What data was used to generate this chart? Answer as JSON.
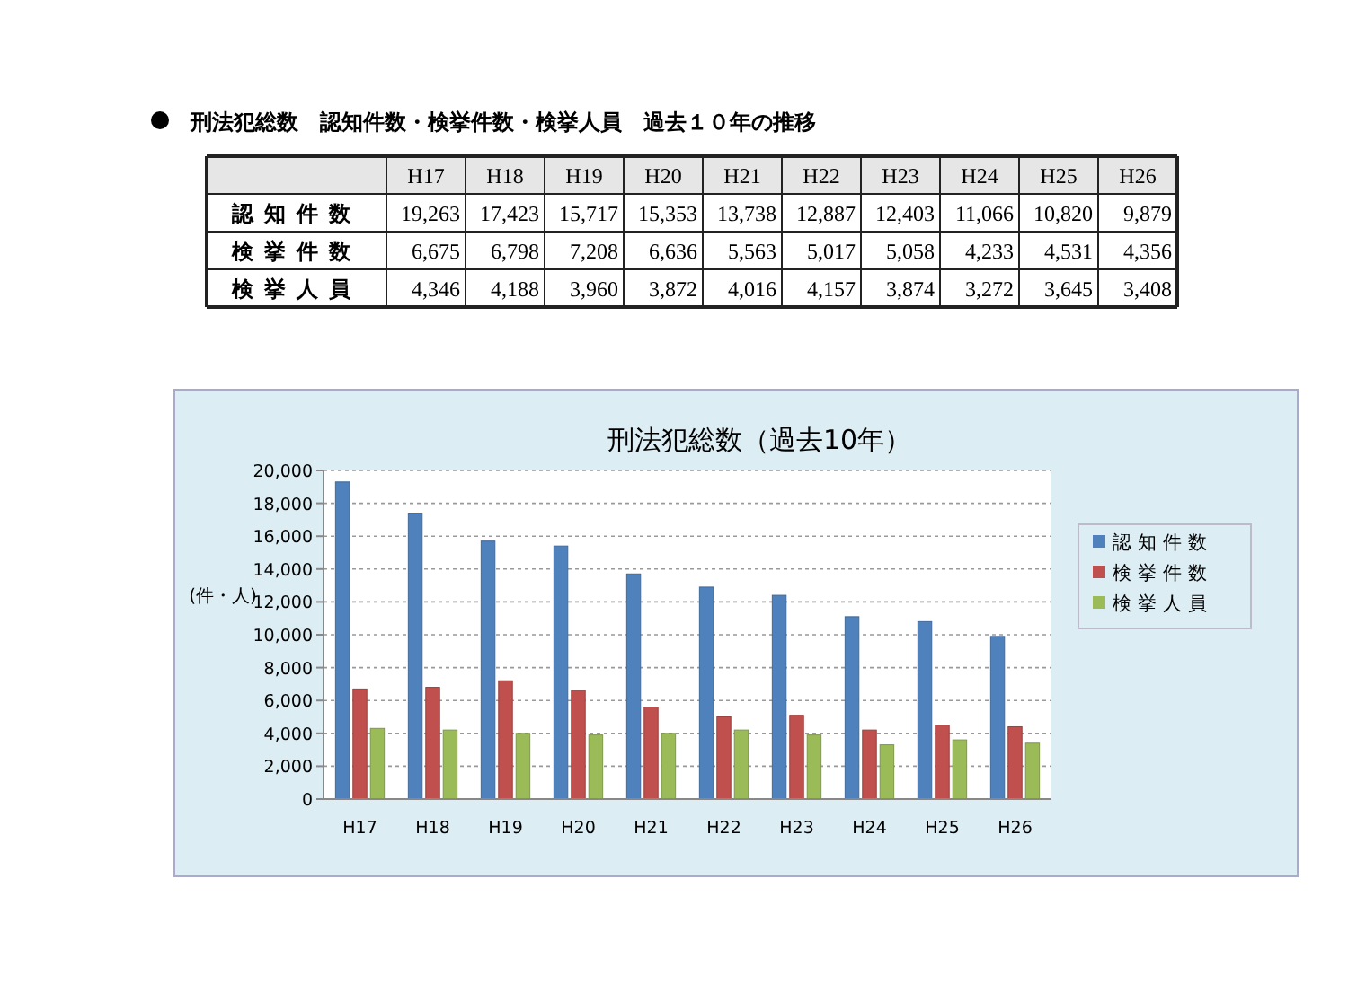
{
  "chart_data": [
    {
      "type": "other",
      "title": "刑法犯総数　認知件数・検挙件数・検挙人員　過去１０年の推移",
      "categories": [
        "H17",
        "H18",
        "H19",
        "H20",
        "H21",
        "H22",
        "H23",
        "H24",
        "H25",
        "H26"
      ],
      "series": [
        {
          "name": "認知件数",
          "values": [
            19263,
            17423,
            15717,
            15353,
            13738,
            12887,
            12403,
            11066,
            10820,
            9879
          ],
          "value_labels": [
            "19,263",
            "17,423",
            "15,717",
            "15,353",
            "13,738",
            "12,887",
            "12,403",
            "11,066",
            "10,820",
            "9,879"
          ]
        },
        {
          "name": "検挙件数",
          "values": [
            6675,
            6798,
            7208,
            6636,
            5563,
            5017,
            5058,
            4233,
            4531,
            4356
          ],
          "value_labels": [
            "6,675",
            "6,798",
            "7,208",
            "6,636",
            "5,563",
            "5,017",
            "5,058",
            "4,233",
            "4,531",
            "4,356"
          ]
        },
        {
          "name": "検挙人員",
          "values": [
            4346,
            4188,
            3960,
            3872,
            4016,
            4157,
            3874,
            3272,
            3645,
            3408
          ],
          "value_labels": [
            "4,346",
            "4,188",
            "3,960",
            "3,872",
            "4,016",
            "4,157",
            "3,874",
            "3,272",
            "3,645",
            "3,408"
          ]
        }
      ]
    },
    {
      "type": "bar",
      "title": "刑法犯総数（過去10年）",
      "ylabel": "(件・人)",
      "categories": [
        "H17",
        "H18",
        "H19",
        "H20",
        "H21",
        "H22",
        "H23",
        "H24",
        "H25",
        "H26"
      ],
      "series": [
        {
          "name": "認知件数",
          "color": "#4f81bd",
          "values": [
            19300,
            17400,
            15700,
            15400,
            13700,
            12900,
            12400,
            11100,
            10800,
            9900
          ]
        },
        {
          "name": "検挙件数",
          "color": "#c0504d",
          "values": [
            6700,
            6800,
            7200,
            6600,
            5600,
            5000,
            5100,
            4200,
            4500,
            4400
          ]
        },
        {
          "name": "検挙人員",
          "color": "#9bbb59",
          "values": [
            4300,
            4200,
            4000,
            3900,
            4000,
            4200,
            3900,
            3300,
            3600,
            3400
          ]
        }
      ],
      "ylim": [
        0,
        20000
      ],
      "yticks": [
        {
          "value": 0,
          "label": "0"
        },
        {
          "value": 2000,
          "label": "2,000"
        },
        {
          "value": 4000,
          "label": "4,000"
        },
        {
          "value": 6000,
          "label": "6,000"
        },
        {
          "value": 8000,
          "label": "8,000"
        },
        {
          "value": 10000,
          "label": "10,000"
        },
        {
          "value": 12000,
          "label": "12,000"
        },
        {
          "value": 14000,
          "label": "14,000"
        },
        {
          "value": 16000,
          "label": "16,000"
        },
        {
          "value": 18000,
          "label": "18,000"
        },
        {
          "value": 20000,
          "label": "20,000"
        }
      ],
      "grid": "y",
      "legend": "right"
    }
  ]
}
